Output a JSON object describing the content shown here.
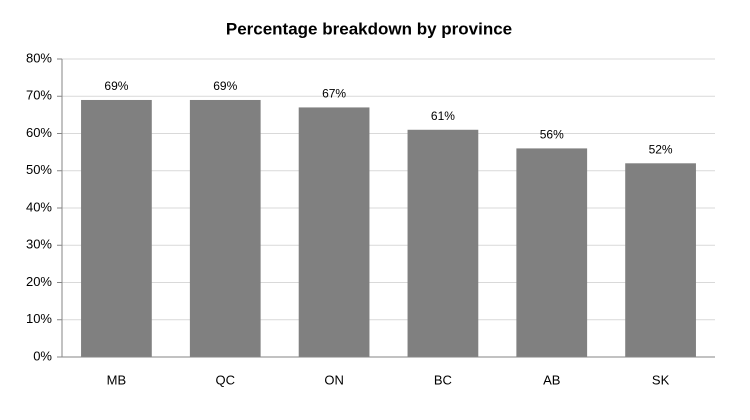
{
  "chart_data": {
    "type": "bar",
    "title": "Percentage breakdown by province",
    "categories": [
      "MB",
      "QC",
      "ON",
      "BC",
      "AB",
      "SK"
    ],
    "values": [
      69,
      69,
      67,
      61,
      56,
      52
    ],
    "value_labels": [
      "69%",
      "69%",
      "67%",
      "61%",
      "56%",
      "52%"
    ],
    "color": "#808080",
    "ylim": [
      0,
      80
    ],
    "yticks": [
      {
        "value": 0,
        "label": "0%"
      },
      {
        "value": 10,
        "label": "10%"
      },
      {
        "value": 20,
        "label": "20%"
      },
      {
        "value": 30,
        "label": "30%"
      },
      {
        "value": 40,
        "label": "40%"
      },
      {
        "value": 50,
        "label": "50%"
      },
      {
        "value": 60,
        "label": "60%"
      },
      {
        "value": 70,
        "label": "70%"
      },
      {
        "value": 80,
        "label": "80%"
      }
    ],
    "grid": true
  }
}
